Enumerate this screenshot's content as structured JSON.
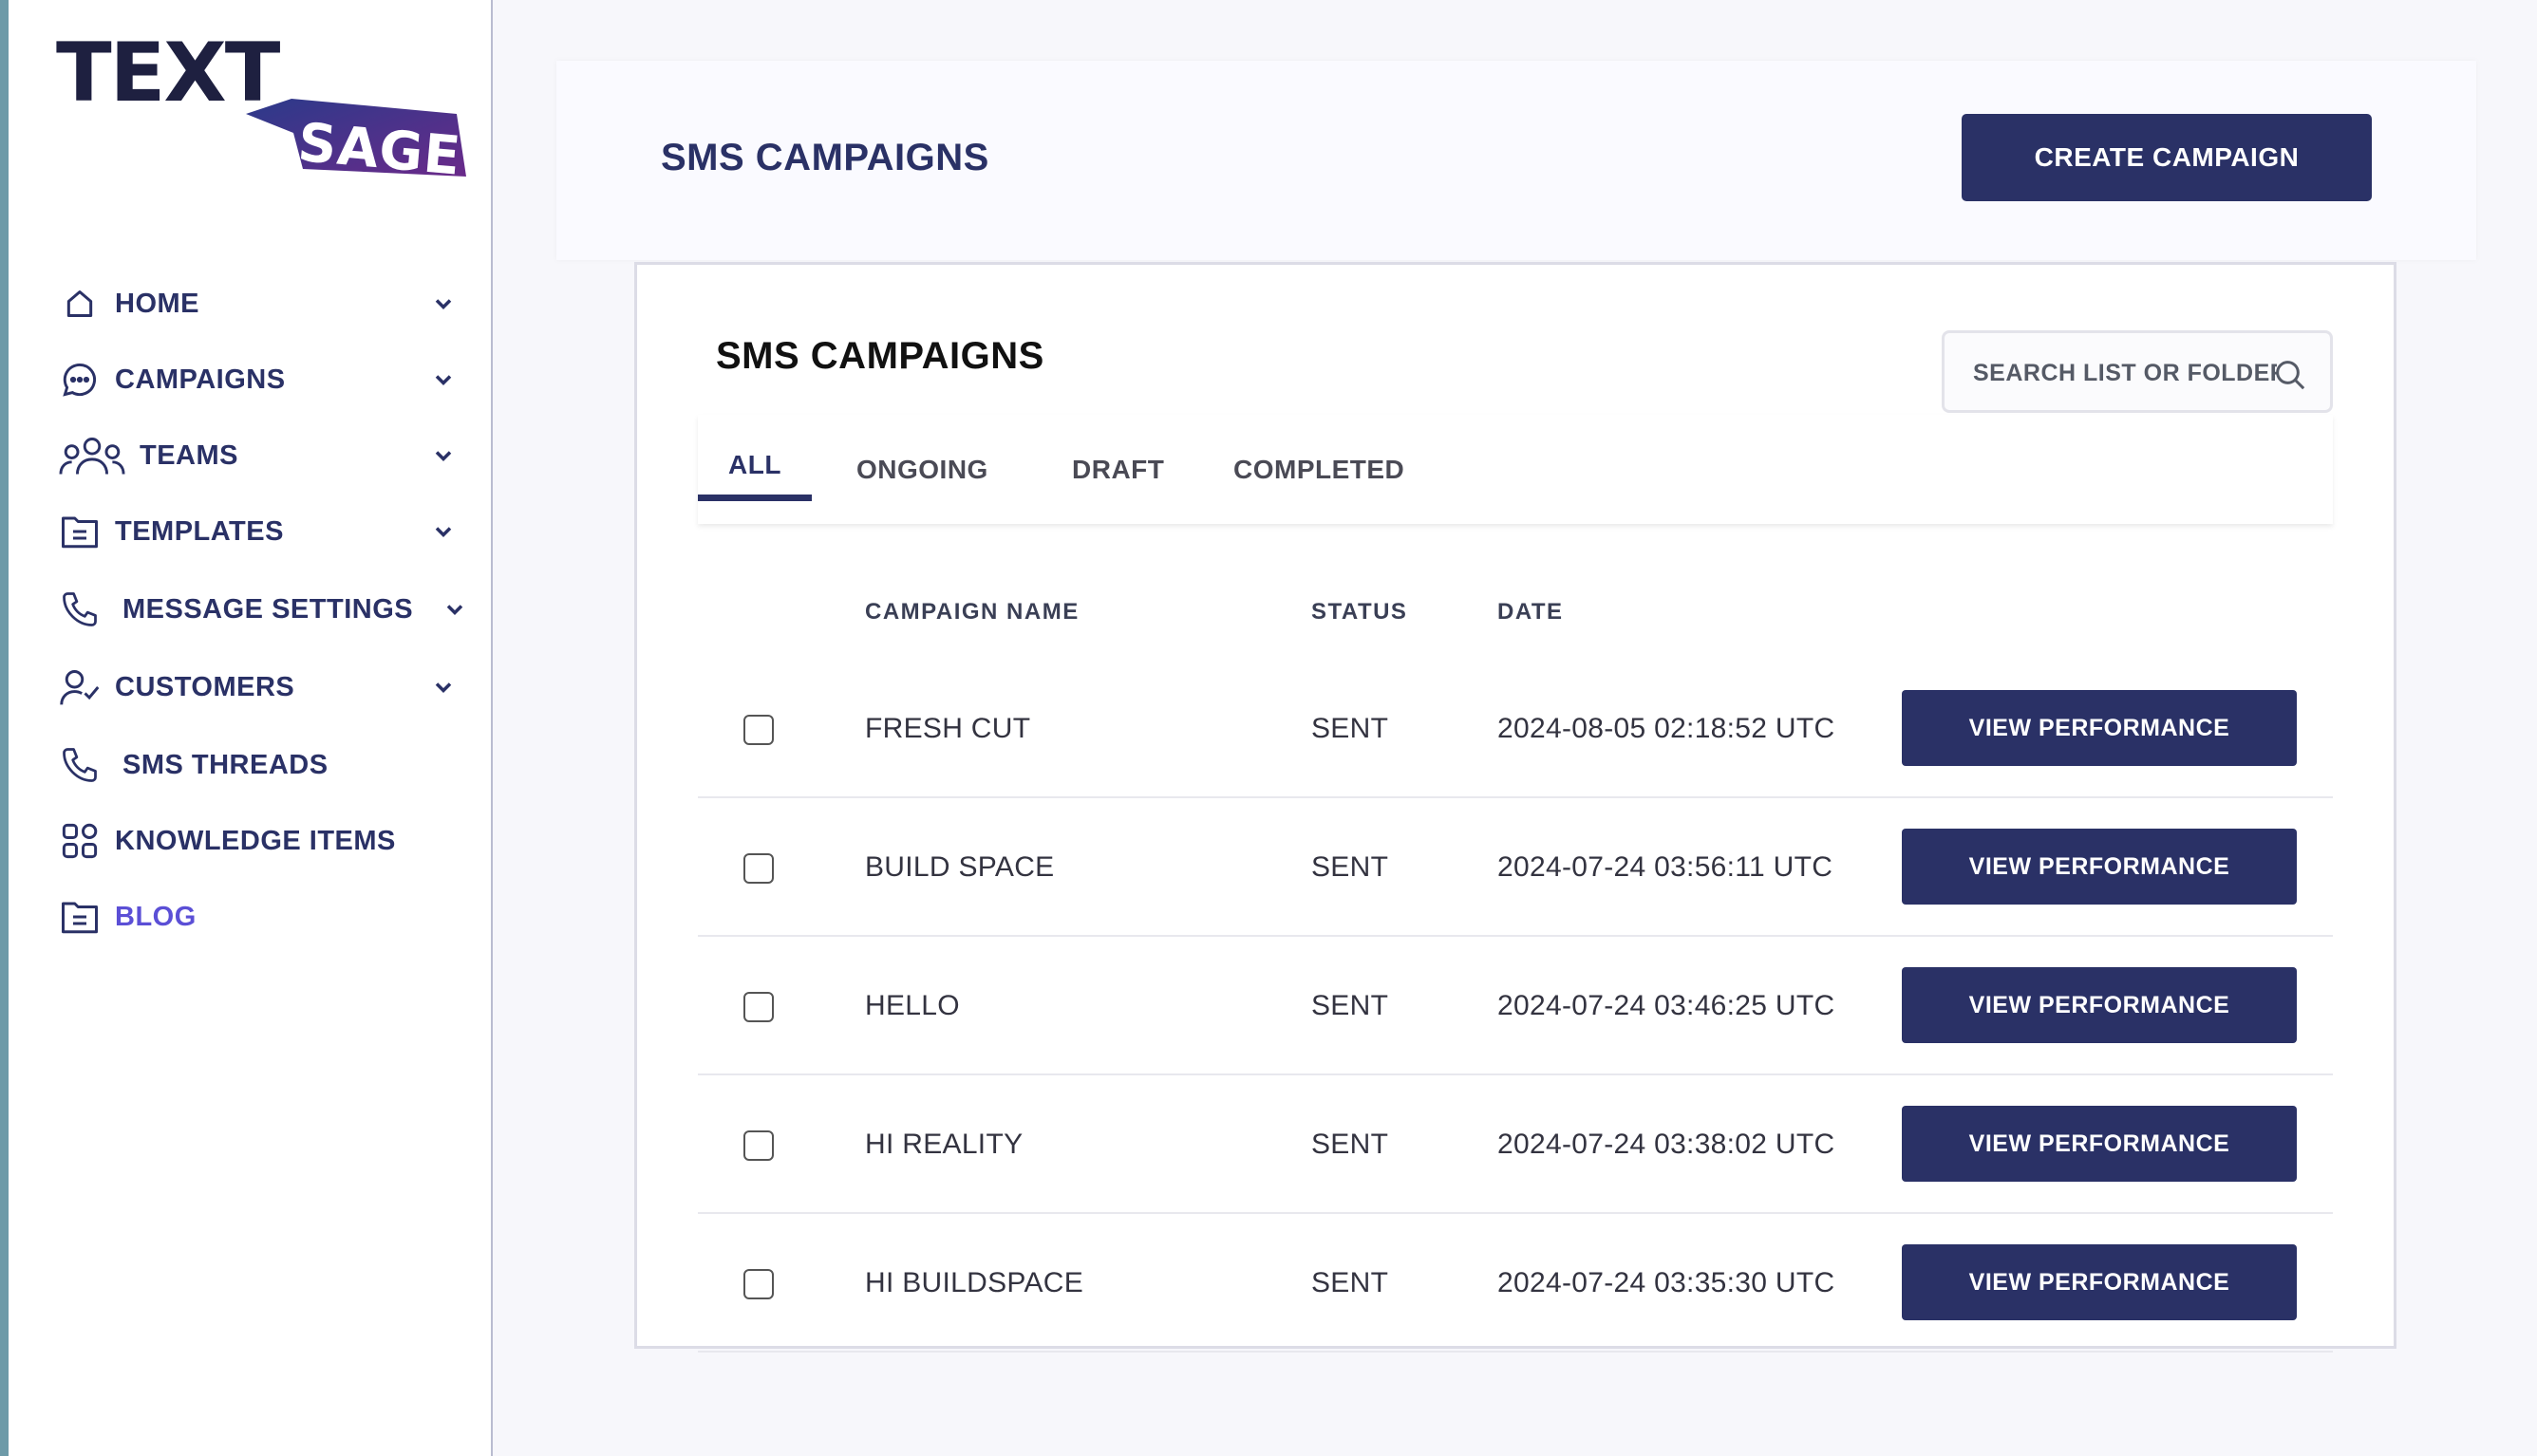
{
  "brand": {
    "logo_word1": "TEXT",
    "logo_word2": "SAGE",
    "dark": "#1e2040",
    "accent_from": "#2b3a8a",
    "accent_to": "#6a2a8a"
  },
  "sidebar": {
    "items": [
      {
        "label": "HOME",
        "icon": "home-icon",
        "has_chevron": true
      },
      {
        "label": "CAMPAIGNS",
        "icon": "chat-bubble-icon",
        "has_chevron": true
      },
      {
        "label": "TEAMS",
        "icon": "users-icon",
        "has_chevron": true
      },
      {
        "label": "TEMPLATES",
        "icon": "folder-icon",
        "has_chevron": true
      },
      {
        "label": "MESSAGE SETTINGS",
        "icon": "phone-icon",
        "has_chevron": true
      },
      {
        "label": "CUSTOMERS",
        "icon": "user-check-icon",
        "has_chevron": true
      },
      {
        "label": "SMS THREADS",
        "icon": "phone-icon",
        "has_chevron": false
      },
      {
        "label": "KNOWLEDGE ITEMS",
        "icon": "grid-icon",
        "has_chevron": false
      },
      {
        "label": "BLOG",
        "icon": "folder-icon",
        "has_chevron": false,
        "active": true
      }
    ]
  },
  "header": {
    "title": "SMS CAMPAIGNS",
    "create_label": "CREATE CAMPAIGN"
  },
  "panel": {
    "title": "SMS CAMPAIGNS",
    "search_placeholder": "SEARCH LIST OR FOLDER",
    "tabs": [
      {
        "label": "ALL",
        "active": true
      },
      {
        "label": "ONGOING"
      },
      {
        "label": "DRAFT"
      },
      {
        "label": "COMPLETED"
      }
    ],
    "columns": {
      "name": "CAMPAIGN NAME",
      "status": "STATUS",
      "date": "DATE"
    },
    "rows": [
      {
        "name": "FRESH CUT",
        "status": "SENT",
        "date": "2024-08-05 02:18:52 UTC",
        "action": "VIEW PERFORMANCE"
      },
      {
        "name": "BUILD SPACE",
        "status": "SENT",
        "date": "2024-07-24 03:56:11 UTC",
        "action": "VIEW PERFORMANCE"
      },
      {
        "name": "HELLO",
        "status": "SENT",
        "date": "2024-07-24 03:46:25 UTC",
        "action": "VIEW PERFORMANCE"
      },
      {
        "name": "HI REALITY",
        "status": "SENT",
        "date": "2024-07-24 03:38:02 UTC",
        "action": "VIEW PERFORMANCE"
      },
      {
        "name": "HI BUILDSPACE",
        "status": "SENT",
        "date": "2024-07-24 03:35:30 UTC",
        "action": "VIEW PERFORMANCE"
      }
    ]
  },
  "colors": {
    "primary": "#2a3166",
    "active_nav": "#5b4fd6",
    "background": "#f7f7fb"
  }
}
